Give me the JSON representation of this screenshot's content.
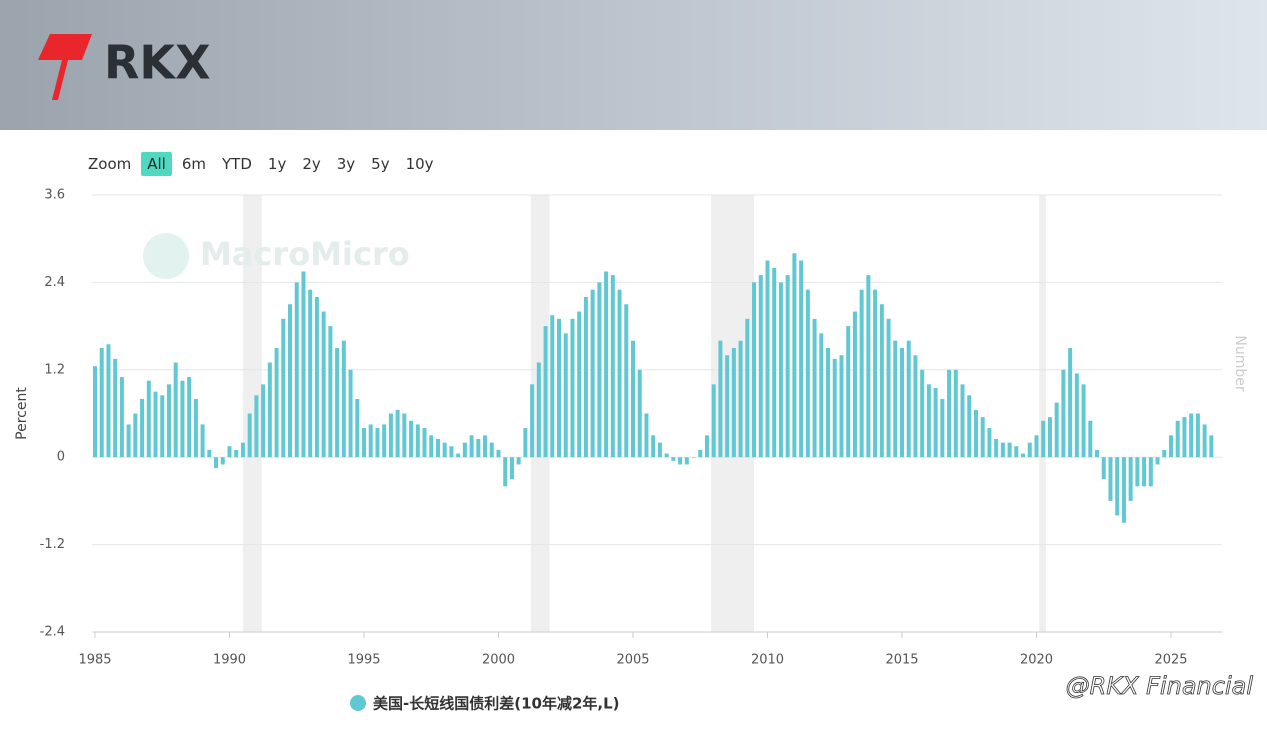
{
  "header": {
    "logo_text": "RKX"
  },
  "zoom": {
    "label": "Zoom",
    "buttons": [
      "All",
      "6m",
      "YTD",
      "1y",
      "2y",
      "3y",
      "5y",
      "10y"
    ],
    "active": "All"
  },
  "watermarks": {
    "chart": "MacroMicro",
    "corner": "@RKX Financial"
  },
  "chart_data": {
    "type": "bar",
    "y_label": "Percent",
    "y2_label": "Number",
    "color": "#5fc8d3",
    "grid": true,
    "ylim": [
      -2.4,
      3.6
    ],
    "yticks": [
      -2.4,
      -1.2,
      0,
      1.2,
      2.4,
      3.6
    ],
    "xlim": [
      1984.9,
      2026.9
    ],
    "xticks": [
      1985,
      1990,
      1995,
      2000,
      2005,
      2010,
      2015,
      2020,
      2025
    ],
    "recessions": [
      [
        1990.5,
        1991.2
      ],
      [
        2001.2,
        2001.9
      ],
      [
        2007.9,
        2009.5
      ],
      [
        2020.1,
        2020.35
      ]
    ],
    "series": [
      {
        "name": "美国-长短线国债利差(10年减2年,L)",
        "color": "#5fc8d3",
        "x": [
          1985,
          1985.25,
          1985.5,
          1985.75,
          1986,
          1986.25,
          1986.5,
          1986.75,
          1987,
          1987.25,
          1987.5,
          1987.75,
          1988,
          1988.25,
          1988.5,
          1988.75,
          1989,
          1989.25,
          1989.5,
          1989.75,
          1990,
          1990.25,
          1990.5,
          1990.75,
          1991,
          1991.25,
          1991.5,
          1991.75,
          1992,
          1992.25,
          1992.5,
          1992.75,
          1993,
          1993.25,
          1993.5,
          1993.75,
          1994,
          1994.25,
          1994.5,
          1994.75,
          1995,
          1995.25,
          1995.5,
          1995.75,
          1996,
          1996.25,
          1996.5,
          1996.75,
          1997,
          1997.25,
          1997.5,
          1997.75,
          1998,
          1998.25,
          1998.5,
          1998.75,
          1999,
          1999.25,
          1999.5,
          1999.75,
          2000,
          2000.25,
          2000.5,
          2000.75,
          2001,
          2001.25,
          2001.5,
          2001.75,
          2002,
          2002.25,
          2002.5,
          2002.75,
          2003,
          2003.25,
          2003.5,
          2003.75,
          2004,
          2004.25,
          2004.5,
          2004.75,
          2005,
          2005.25,
          2005.5,
          2005.75,
          2006,
          2006.25,
          2006.5,
          2006.75,
          2007,
          2007.25,
          2007.5,
          2007.75,
          2008,
          2008.25,
          2008.5,
          2008.75,
          2009,
          2009.25,
          2009.5,
          2009.75,
          2010,
          2010.25,
          2010.5,
          2010.75,
          2011,
          2011.25,
          2011.5,
          2011.75,
          2012,
          2012.25,
          2012.5,
          2012.75,
          2013,
          2013.25,
          2013.5,
          2013.75,
          2014,
          2014.25,
          2014.5,
          2014.75,
          2015,
          2015.25,
          2015.5,
          2015.75,
          2016,
          2016.25,
          2016.5,
          2016.75,
          2017,
          2017.25,
          2017.5,
          2017.75,
          2018,
          2018.25,
          2018.5,
          2018.75,
          2019,
          2019.25,
          2019.5,
          2019.75,
          2020,
          2020.25,
          2020.5,
          2020.75,
          2021,
          2021.25,
          2021.5,
          2021.75,
          2022,
          2022.25,
          2022.5,
          2022.75,
          2023,
          2023.25,
          2023.5,
          2023.75,
          2024,
          2024.25,
          2024.5,
          2024.75,
          2025,
          2025.25,
          2025.5,
          2025.75,
          2026,
          2026.25,
          2026.5
        ],
        "values": [
          1.25,
          1.5,
          1.55,
          1.35,
          1.1,
          0.45,
          0.6,
          0.8,
          1.05,
          0.9,
          0.85,
          1.0,
          1.3,
          1.05,
          1.1,
          0.8,
          0.45,
          0.1,
          -0.15,
          -0.1,
          0.15,
          0.1,
          0.2,
          0.6,
          0.85,
          1.0,
          1.3,
          1.5,
          1.9,
          2.1,
          2.4,
          2.55,
          2.3,
          2.2,
          2.0,
          1.8,
          1.5,
          1.6,
          1.2,
          0.8,
          0.4,
          0.45,
          0.4,
          0.45,
          0.6,
          0.65,
          0.6,
          0.5,
          0.45,
          0.4,
          0.3,
          0.25,
          0.2,
          0.15,
          0.05,
          0.2,
          0.3,
          0.25,
          0.3,
          0.2,
          0.1,
          -0.4,
          -0.3,
          -0.1,
          0.4,
          1.0,
          1.3,
          1.8,
          1.95,
          1.9,
          1.7,
          1.9,
          2.0,
          2.2,
          2.3,
          2.4,
          2.55,
          2.5,
          2.3,
          2.1,
          1.6,
          1.2,
          0.6,
          0.3,
          0.2,
          0.05,
          -0.05,
          -0.1,
          -0.1,
          0.0,
          0.1,
          0.3,
          1.0,
          1.6,
          1.4,
          1.5,
          1.6,
          1.9,
          2.4,
          2.5,
          2.7,
          2.6,
          2.4,
          2.5,
          2.8,
          2.7,
          2.3,
          1.9,
          1.7,
          1.5,
          1.35,
          1.4,
          1.8,
          2.0,
          2.3,
          2.5,
          2.3,
          2.1,
          1.9,
          1.6,
          1.5,
          1.6,
          1.4,
          1.2,
          1.0,
          0.95,
          0.8,
          1.2,
          1.2,
          1.0,
          0.85,
          0.65,
          0.55,
          0.4,
          0.25,
          0.2,
          0.2,
          0.15,
          0.05,
          0.2,
          0.3,
          0.5,
          0.55,
          0.75,
          1.2,
          1.5,
          1.15,
          1.0,
          0.5,
          0.1,
          -0.3,
          -0.6,
          -0.8,
          -0.9,
          -0.6,
          -0.4,
          -0.4,
          -0.4,
          -0.1,
          0.1,
          0.3,
          0.5,
          0.55,
          0.6,
          0.6,
          0.45,
          0.3
        ]
      }
    ]
  }
}
